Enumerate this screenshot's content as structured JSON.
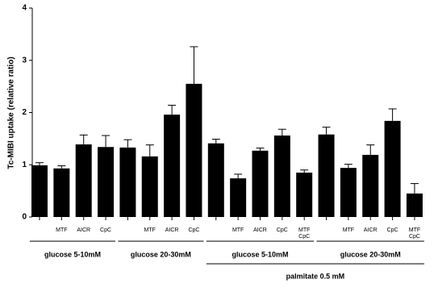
{
  "chart_data": {
    "type": "bar",
    "ylabel": "Tc-MIBI uptake (relative ratio)",
    "categories": [
      null,
      "MTF",
      "AICR",
      "CpC",
      null,
      "MTF",
      "AICR",
      "CpC",
      null,
      "MTF",
      "AICR",
      "CpC",
      "MTF\nCpC",
      null,
      "MTF",
      "AICR",
      "CpC",
      "MTF\nCpC"
    ],
    "values": [
      0.99,
      0.93,
      1.39,
      1.34,
      1.33,
      1.16,
      1.96,
      2.55,
      1.41,
      0.74,
      1.27,
      1.56,
      0.85,
      1.58,
      0.94,
      1.19,
      1.84,
      0.45
    ],
    "errors": [
      0.05,
      0.05,
      0.18,
      0.22,
      0.15,
      0.22,
      0.18,
      0.71,
      0.08,
      0.08,
      0.05,
      0.12,
      0.05,
      0.14,
      0.07,
      0.19,
      0.23,
      0.19
    ],
    "color": "#000000",
    "ylim": [
      0,
      4
    ],
    "yticks": [
      0,
      1,
      2,
      3,
      4
    ],
    "group_labels": [
      "glucose 5-10mM",
      "glucose 20-30mM",
      "glucose 5-10mM",
      "glucose 20-30mM"
    ],
    "super_label": "palmitate 0.5 mM"
  }
}
